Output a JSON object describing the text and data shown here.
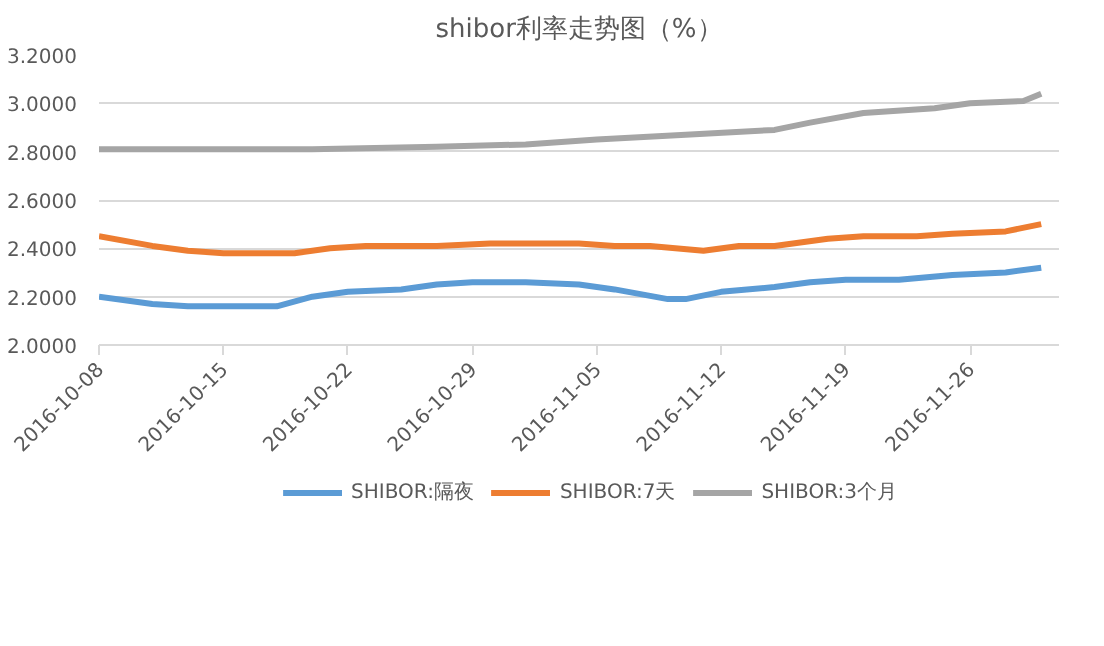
{
  "chart_data": {
    "type": "line",
    "title": "shibor利率走势图（%）",
    "ylim": [
      2.0,
      3.2
    ],
    "yticks": [
      {
        "value": 2.0,
        "label": "2.0000"
      },
      {
        "value": 2.2,
        "label": "2.2000"
      },
      {
        "value": 2.4,
        "label": "2.4000"
      },
      {
        "value": 2.6,
        "label": "2.6000"
      },
      {
        "value": 2.8,
        "label": "2.8000"
      },
      {
        "value": 3.0,
        "label": "3.0000"
      },
      {
        "value": 3.2,
        "label": "3.2000"
      }
    ],
    "xlim": [
      "2016-10-08",
      "2016-12-01"
    ],
    "xticks": [
      "2016-10-08",
      "2016-10-15",
      "2016-10-22",
      "2016-10-29",
      "2016-11-05",
      "2016-11-12",
      "2016-11-19",
      "2016-11-26"
    ],
    "grid": "y",
    "legend": "bottom",
    "marker": "none",
    "line_style": "solid",
    "series": [
      {
        "name": "SHIBOR:隔夜",
        "color": "#5b9bd5",
        "x": [
          "2016-10-08",
          "2016-10-11",
          "2016-10-13",
          "2016-10-15",
          "2016-10-18",
          "2016-10-20",
          "2016-10-22",
          "2016-10-25",
          "2016-10-27",
          "2016-10-29",
          "2016-11-01",
          "2016-11-04",
          "2016-11-06",
          "2016-11-09",
          "2016-11-10",
          "2016-11-12",
          "2016-11-15",
          "2016-11-17",
          "2016-11-19",
          "2016-11-22",
          "2016-11-25",
          "2016-11-28",
          "2016-11-30"
        ],
        "values": [
          2.2,
          2.17,
          2.16,
          2.16,
          2.16,
          2.2,
          2.22,
          2.23,
          2.25,
          2.26,
          2.26,
          2.25,
          2.23,
          2.19,
          2.19,
          2.22,
          2.24,
          2.26,
          2.27,
          2.27,
          2.29,
          2.3,
          2.32
        ]
      },
      {
        "name": "SHIBOR:7天",
        "color": "#ed7d31",
        "x": [
          "2016-10-08",
          "2016-10-11",
          "2016-10-13",
          "2016-10-15",
          "2016-10-19",
          "2016-10-21",
          "2016-10-23",
          "2016-10-27",
          "2016-10-30",
          "2016-11-02",
          "2016-11-04",
          "2016-11-06",
          "2016-11-08",
          "2016-11-11",
          "2016-11-13",
          "2016-11-15",
          "2016-11-18",
          "2016-11-20",
          "2016-11-23",
          "2016-11-25",
          "2016-11-28",
          "2016-11-30"
        ],
        "values": [
          2.45,
          2.41,
          2.39,
          2.38,
          2.38,
          2.4,
          2.41,
          2.41,
          2.42,
          2.42,
          2.42,
          2.41,
          2.41,
          2.39,
          2.41,
          2.41,
          2.44,
          2.45,
          2.45,
          2.46,
          2.47,
          2.5
        ]
      },
      {
        "name": "SHIBOR:3个月",
        "color": "#a5a5a5",
        "x": [
          "2016-10-08",
          "2016-10-20",
          "2016-10-27",
          "2016-11-01",
          "2016-11-05",
          "2016-11-10",
          "2016-11-15",
          "2016-11-17",
          "2016-11-20",
          "2016-11-24",
          "2016-11-26",
          "2016-11-29",
          "2016-11-30"
        ],
        "values": [
          2.81,
          2.81,
          2.82,
          2.83,
          2.85,
          2.87,
          2.89,
          2.92,
          2.96,
          2.98,
          3.0,
          3.01,
          3.04
        ]
      }
    ]
  }
}
